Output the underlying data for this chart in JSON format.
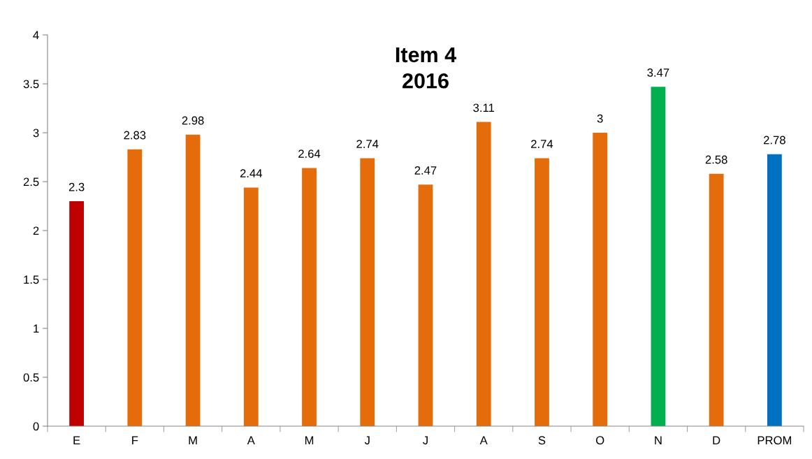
{
  "chart_data": {
    "type": "bar",
    "title": "Item 4\n2016",
    "categories": [
      "E",
      "F",
      "M",
      "A",
      "M",
      "J",
      "J",
      "A",
      "S",
      "O",
      "N",
      "D",
      "PROM"
    ],
    "values": [
      2.3,
      2.83,
      2.98,
      2.44,
      2.64,
      2.74,
      2.47,
      3.11,
      2.74,
      3,
      3.47,
      2.58,
      2.78
    ],
    "colors": [
      "#c00000",
      "#e46c0a",
      "#e46c0a",
      "#e46c0a",
      "#e46c0a",
      "#e46c0a",
      "#e46c0a",
      "#e46c0a",
      "#e46c0a",
      "#e46c0a",
      "#00b050",
      "#e46c0a",
      "#0070c0"
    ],
    "ylim": [
      0,
      4
    ],
    "yticks": [
      0,
      0.5,
      1,
      1.5,
      2,
      2.5,
      3,
      3.5,
      4
    ],
    "grid": false,
    "data_labels": true
  }
}
